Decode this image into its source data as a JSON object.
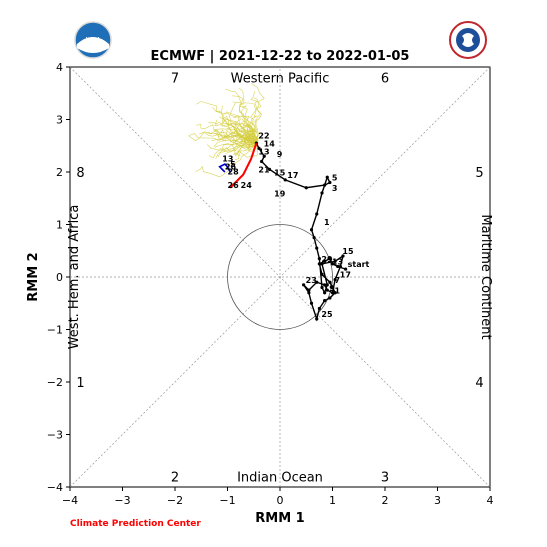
{
  "colors": {
    "observed": "#000000",
    "ensemble": "#d4cc3a",
    "mean_a": "#ff0000",
    "mean_b": "#0000cc",
    "circle": "#555555",
    "guide": "#999999",
    "credit": "#ff0000"
  },
  "credit": "Climate Prediction Center",
  "logos": {
    "left": "noaa-logo",
    "right": "nws-logo"
  },
  "chart_data": {
    "type": "line",
    "title": "ECMWF | 2021-12-22 to 2022-01-05",
    "xlabel": "RMM 1",
    "ylabel": "RMM 2",
    "xlim": [
      -4,
      4
    ],
    "ylim": [
      -4,
      4
    ],
    "ticks": [
      -4,
      -3,
      -2,
      -1,
      0,
      1,
      2,
      3,
      4
    ],
    "tick_labels": [
      "−4",
      "−3",
      "−2",
      "−1",
      "0",
      "1",
      "2",
      "3",
      "4"
    ],
    "grid": false,
    "phase_labels": [
      {
        "text": "7",
        "x": -2.0,
        "y": 3.8
      },
      {
        "text": "6",
        "x": 2.0,
        "y": 3.8
      },
      {
        "text": "8",
        "x": -3.8,
        "y": 2.0
      },
      {
        "text": "5",
        "x": 3.8,
        "y": 2.0
      },
      {
        "text": "1",
        "x": -3.8,
        "y": -2.0
      },
      {
        "text": "4",
        "x": 3.8,
        "y": -2.0
      },
      {
        "text": "2",
        "x": -2.0,
        "y": -3.8
      },
      {
        "text": "3",
        "x": 2.0,
        "y": -3.8
      }
    ],
    "region_labels": {
      "top": "Western Pacific",
      "bottom": "Indian Ocean",
      "left": "West. Hem. and Africa",
      "right": "Maritime Continent"
    },
    "observed": {
      "x": [
        1.25,
        1.1,
        1.0,
        0.95,
        0.85,
        0.75,
        0.8,
        0.95,
        1.0,
        1.05,
        0.95,
        0.85,
        0.75,
        0.7,
        0.6,
        0.55,
        0.45,
        0.55,
        0.7,
        0.85,
        0.9,
        1.0,
        1.05,
        1.15,
        1.2,
        1.05,
        0.8,
        0.9,
        0.85,
        0.8,
        0.75,
        0.7,
        0.65,
        0.6,
        0.7,
        0.8,
        0.9,
        0.95,
        0.85,
        0.5,
        0.1,
        -0.2,
        -0.35,
        -0.3,
        -0.4,
        -0.45
      ],
      "y": [
        0.15,
        0.2,
        0.25,
        0.35,
        0.3,
        0.25,
        0.05,
        -0.1,
        -0.2,
        -0.3,
        -0.4,
        -0.45,
        -0.6,
        -0.8,
        -0.5,
        -0.3,
        -0.15,
        -0.25,
        -0.1,
        -0.15,
        -0.25,
        -0.3,
        -0.05,
        0.2,
        0.4,
        0.3,
        0.25,
        -0.15,
        -0.3,
        -0.2,
        0.35,
        0.55,
        0.75,
        0.9,
        1.2,
        1.6,
        1.9,
        1.8,
        1.75,
        1.7,
        1.85,
        2.05,
        2.2,
        2.3,
        2.45,
        2.55
      ],
      "labels": [
        {
          "text": "start",
          "x": 1.25,
          "y": 0.15
        },
        {
          "text": "15",
          "x": 1.15,
          "y": 0.4
        },
        {
          "text": "13",
          "x": 0.95,
          "y": 0.2
        },
        {
          "text": "29",
          "x": 0.75,
          "y": 0.25
        },
        {
          "text": "17",
          "x": 1.1,
          "y": -0.05
        },
        {
          "text": "7",
          "x": 1.0,
          "y": -0.15
        },
        {
          "text": "9",
          "x": 0.9,
          "y": -0.3
        },
        {
          "text": "1",
          "x": 1.0,
          "y": -0.35
        },
        {
          "text": "23",
          "x": 0.45,
          "y": -0.15
        },
        {
          "text": "25",
          "x": 0.75,
          "y": -0.8
        },
        {
          "text": "1",
          "x": 0.8,
          "y": 0.95
        },
        {
          "text": "5",
          "x": 0.95,
          "y": 1.8
        },
        {
          "text": "3",
          "x": 0.95,
          "y": 1.6
        },
        {
          "text": "17",
          "x": 0.1,
          "y": 1.85
        },
        {
          "text": "15",
          "x": -0.15,
          "y": 1.9
        },
        {
          "text": "21",
          "x": -0.45,
          "y": 1.95
        },
        {
          "text": "19",
          "x": -0.15,
          "y": 1.5
        },
        {
          "text": "13",
          "x": -0.45,
          "y": 2.3
        },
        {
          "text": "9",
          "x": -0.1,
          "y": 2.25
        },
        {
          "text": "14",
          "x": -0.35,
          "y": 2.45
        },
        {
          "text": "22",
          "x": -0.45,
          "y": 2.6
        }
      ]
    },
    "forecast_mean": {
      "x": [
        -0.45,
        -0.5,
        -0.55,
        -0.6,
        -0.65,
        -0.7,
        -0.75,
        -0.8,
        -0.85,
        -0.9,
        -0.95
      ],
      "y": [
        2.55,
        2.4,
        2.25,
        2.15,
        2.05,
        1.95,
        1.9,
        1.85,
        1.8,
        1.75,
        1.7
      ],
      "labels": [
        {
          "text": "24",
          "x": -0.75,
          "y": 1.85
        },
        {
          "text": "26",
          "x": -1.0,
          "y": 1.85
        }
      ]
    },
    "forecast_mean_b": {
      "x": [
        -1.05,
        -1.1,
        -1.15,
        -1.05,
        -1.0,
        -0.95
      ],
      "y": [
        2.0,
        2.05,
        2.1,
        2.15,
        2.1,
        2.0
      ],
      "labels": [
        {
          "text": "13",
          "x": -1.1,
          "y": 2.2
        },
        {
          "text": "5",
          "x": -0.95,
          "y": 2.1
        },
        {
          "text": "26",
          "x": -1.05,
          "y": 2.05
        },
        {
          "text": "28",
          "x": -1.0,
          "y": 1.95
        }
      ]
    }
  }
}
